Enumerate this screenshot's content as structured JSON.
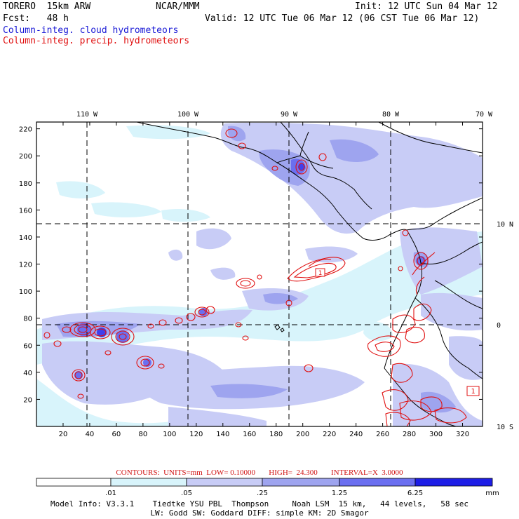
{
  "header": {
    "model": "TORERO  15km ARW",
    "center": "NCAR/MMM",
    "init": "Init: 12 UTC Sun 04 Mar 12",
    "fcst": "Fcst:   48 h",
    "valid": "Valid: 12 UTC Tue 06 Mar 12 (06 CST Tue 06 Mar 12)",
    "legend_cloud": "Column-integ. cloud hydrometeors",
    "legend_precip": "Column-integ. precip. hydrometeors"
  },
  "colors": {
    "cloud_text": "#1a1ad6",
    "precip_text": "#e01010",
    "shade_1": "#d8f4fb",
    "shade_2": "#c8ccf6",
    "shade_3": "#9ea4ef",
    "shade_4": "#6b6ff0",
    "shade_5": "#4040ec",
    "shade_6": "#1d1de6",
    "contour": "#e01010"
  },
  "map": {
    "lon_labels": [
      "110 W",
      "100 W",
      "90 W",
      "80 W",
      "70 W"
    ],
    "lat_labels": [
      "10 N",
      "0",
      "10 S"
    ],
    "x_ticks": [
      "20",
      "40",
      "60",
      "80",
      "100",
      "120",
      "140",
      "160",
      "180",
      "200",
      "220",
      "240",
      "260",
      "280",
      "300",
      "320"
    ],
    "y_ticks": [
      "20",
      "40",
      "60",
      "80",
      "100",
      "120",
      "140",
      "160",
      "180",
      "200",
      "220"
    ],
    "box_labels": [
      "1",
      "1"
    ],
    "x_range": [
      0,
      335
    ],
    "y_range": [
      0,
      225
    ]
  },
  "contour_info": "CONTOURS:  UNITS=mm  LOW= 0.10000       HIGH=  24.300       INTERVAL=X  3.0000",
  "colorbar": {
    "labels": [
      ".01",
      ".05",
      ".25",
      "1.25",
      "6.25"
    ],
    "unit": "mm"
  },
  "model_info": {
    "line1": "Model Info: V3.3.1    Tiedtke YSU PBL  Thompson     Noah LSM  15 km,   44 levels,   58 sec",
    "line2": "LW: Godd SW: Goddard DIFF: simple KM: 2D Smagor"
  }
}
